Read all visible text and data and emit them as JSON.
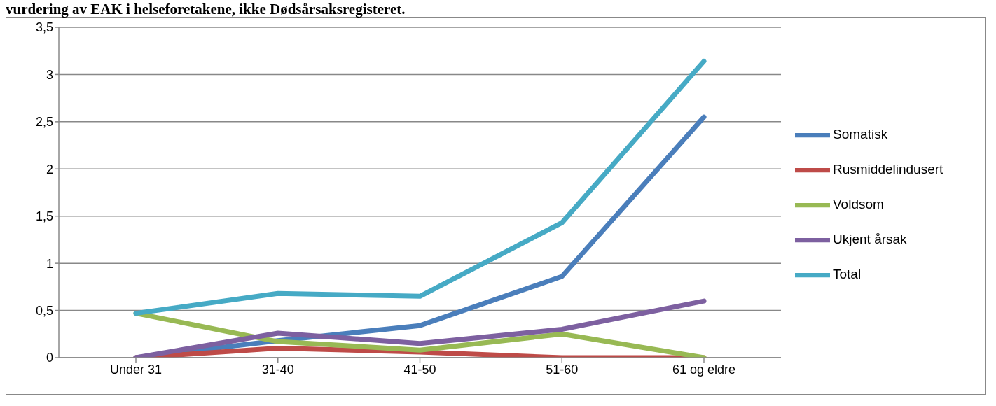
{
  "chart_data": {
    "type": "line",
    "title": "vurdering av EAK i helseforetakene, ikke Dødsårsaksregisteret.",
    "categories": [
      "Under 31",
      "31-40",
      "41-50",
      "51-60",
      "61 og eldre"
    ],
    "series": [
      {
        "name": "Somatisk",
        "color": "#4a7ebb",
        "values": [
          0,
          0.18,
          0.34,
          0.86,
          2.55
        ]
      },
      {
        "name": "Rusmiddelindusert",
        "color": "#be4b48",
        "values": [
          0,
          0.1,
          0.06,
          0,
          0
        ]
      },
      {
        "name": "Voldsom",
        "color": "#98b954",
        "values": [
          0.47,
          0.17,
          0.08,
          0.25,
          0
        ]
      },
      {
        "name": "Ukjent årsak",
        "color": "#7d60a0",
        "values": [
          0,
          0.26,
          0.15,
          0.3,
          0.6
        ]
      },
      {
        "name": "Total",
        "color": "#46aac5",
        "values": [
          0.47,
          0.68,
          0.65,
          1.43,
          3.14
        ]
      }
    ],
    "ylim": [
      0,
      3.5
    ],
    "yticks": [
      {
        "value": 0,
        "label": "0"
      },
      {
        "value": 0.5,
        "label": "0,5"
      },
      {
        "value": 1,
        "label": "1"
      },
      {
        "value": 1.5,
        "label": "1,5"
      },
      {
        "value": 2,
        "label": "2"
      },
      {
        "value": 2.5,
        "label": "2,5"
      },
      {
        "value": 3,
        "label": "3"
      },
      {
        "value": 3.5,
        "label": "3,5"
      }
    ],
    "grid": "y",
    "legend": "right",
    "marker": "none",
    "line_style": "solid"
  }
}
